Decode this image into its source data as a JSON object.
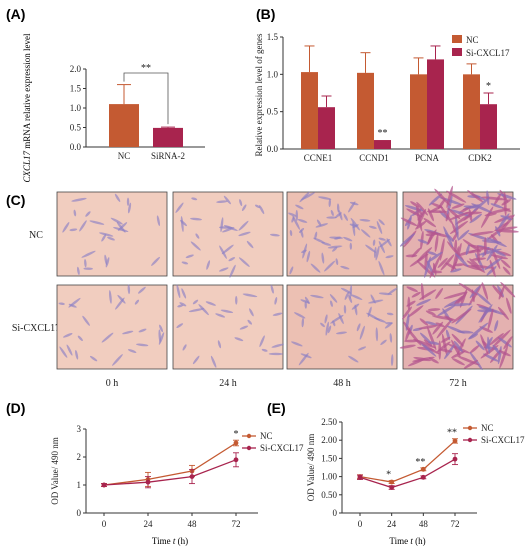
{
  "colors": {
    "nc": "#c45a32",
    "si": "#a8244e",
    "axis": "#333333",
    "micro_bg_a": "#f1cdbf",
    "micro_bg_b": "#ecc0b3",
    "cell_light": "#8c7fc4",
    "cell_dense": "#b4578f"
  },
  "panel_a": {
    "letter": "(A)",
    "significance": "**",
    "chart_data": {
      "type": "bar",
      "categories": [
        "NC",
        "SiRNA-2"
      ],
      "values": [
        1.1,
        0.49
      ],
      "errors": [
        0.5,
        0.02
      ],
      "ylabel": "CXCL17 mRNA relative expression level",
      "ylabel_italic": "CXCL17",
      "ylabel_rest": " mRNA relative expression level",
      "ylim": [
        0,
        2.0
      ],
      "yticks": [
        "0.0",
        "0.5",
        "1.0",
        "1.5",
        "2.0"
      ],
      "colors": [
        "#c45a32",
        "#a8244e"
      ]
    }
  },
  "panel_b": {
    "letter": "(B)",
    "chart_data": {
      "type": "bar",
      "categories": [
        "CCNE1",
        "CCND1",
        "PCNA",
        "CDK2"
      ],
      "ylabel": "Relative expression level of genes",
      "ylim": [
        0,
        1.5
      ],
      "yticks": [
        "0.0",
        "0.5",
        "1.0",
        "1.5"
      ],
      "legend_position": "top-right",
      "series": [
        {
          "name": "NC",
          "values": [
            1.03,
            1.02,
            1.0,
            1.0
          ],
          "errors": [
            0.35,
            0.27,
            0.22,
            0.14
          ],
          "color": "#c45a32"
        },
        {
          "name": "Si-CXCL17",
          "values": [
            0.56,
            0.12,
            1.2,
            0.6
          ],
          "errors": [
            0.15,
            0.0,
            0.18,
            0.15
          ],
          "color": "#a8244e"
        }
      ],
      "annotations": [
        {
          "category": "CCND1",
          "text": "**"
        },
        {
          "category": "CDK2",
          "text": "*"
        }
      ]
    }
  },
  "panel_c": {
    "letter": "(C)",
    "rows": [
      "NC",
      "Si-CXCL17"
    ],
    "columns": [
      "0 h",
      "24 h",
      "48 h",
      "72 h"
    ]
  },
  "panel_d": {
    "letter": "(D)",
    "chart_data": {
      "type": "line",
      "x": [
        0,
        24,
        48,
        72
      ],
      "xticks": [
        "0",
        "24",
        "48",
        "72"
      ],
      "xlabel_prefix": "Time  ",
      "xlabel_italic": "t",
      "xlabel_suffix": " (h)",
      "ylabel": "OD Value/ 490 nm",
      "ylim": [
        0,
        3
      ],
      "yticks": [
        "0",
        "1",
        "2",
        "3"
      ],
      "legend_position": "right",
      "series": [
        {
          "name": "NC",
          "values": [
            1.0,
            1.2,
            1.5,
            2.5
          ],
          "errors": [
            0.05,
            0.25,
            0.2,
            0.1
          ],
          "color": "#c45a32"
        },
        {
          "name": "Si-CXCL17",
          "values": [
            1.0,
            1.1,
            1.3,
            1.9
          ],
          "errors": [
            0.05,
            0.2,
            0.25,
            0.25
          ],
          "color": "#a8244e"
        }
      ],
      "annotations": [
        {
          "x": 72,
          "text": "*"
        }
      ]
    }
  },
  "panel_e": {
    "letter": "(E)",
    "chart_data": {
      "type": "line",
      "x": [
        0,
        24,
        48,
        72
      ],
      "xticks": [
        "0",
        "24",
        "48",
        "72"
      ],
      "xlabel_prefix": "Time  ",
      "xlabel_italic": "t",
      "xlabel_suffix": " (h)",
      "ylabel": "OD Value/ 490 nm",
      "ylim": [
        0,
        2.5
      ],
      "yticks": [
        "0",
        "0.50",
        "1.00",
        "1.50",
        "2.00",
        "2.50"
      ],
      "legend_position": "right",
      "series": [
        {
          "name": "NC",
          "values": [
            1.0,
            0.85,
            1.2,
            1.98
          ],
          "errors": [
            0.05,
            0.04,
            0.04,
            0.06
          ],
          "color": "#c45a32"
        },
        {
          "name": "Si-CXCL17",
          "values": [
            0.98,
            0.7,
            0.98,
            1.48
          ],
          "errors": [
            0.06,
            0.05,
            0.04,
            0.15
          ],
          "color": "#a8244e"
        }
      ],
      "annotations": [
        {
          "x": 24,
          "text": "*"
        },
        {
          "x": 48,
          "text": "**"
        },
        {
          "x": 72,
          "text": "**"
        }
      ]
    }
  }
}
